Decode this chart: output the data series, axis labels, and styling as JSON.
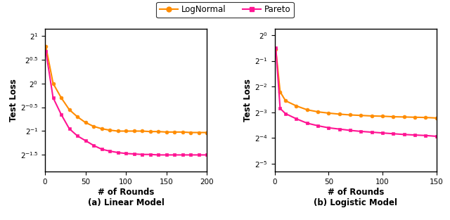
{
  "left": {
    "title": "(a) Linear Model",
    "xlabel": "# of Rounds",
    "ylabel": "Test Loss",
    "xlim": [
      0,
      200
    ],
    "ylim_exp": [
      -1.85,
      1.15
    ],
    "yticks_exp": [
      -1.5,
      -1.0,
      -0.5,
      0.0,
      0.5,
      1.0
    ],
    "xticks": [
      0,
      50,
      100,
      150,
      200
    ],
    "lognormal_x": [
      1,
      10,
      20,
      30,
      40,
      50,
      60,
      70,
      80,
      90,
      100,
      110,
      120,
      130,
      140,
      150,
      160,
      170,
      180,
      190,
      200
    ],
    "lognormal_y": [
      0.78,
      0.0,
      -0.3,
      -0.55,
      -0.7,
      -0.82,
      -0.9,
      -0.95,
      -0.98,
      -1.0,
      -1.0,
      -1.0,
      -1.0,
      -1.01,
      -1.01,
      -1.02,
      -1.02,
      -1.02,
      -1.03,
      -1.03,
      -1.03
    ],
    "pareto_x": [
      1,
      10,
      20,
      30,
      40,
      50,
      60,
      70,
      80,
      90,
      100,
      110,
      120,
      130,
      140,
      150,
      160,
      170,
      180,
      190,
      200
    ],
    "pareto_y": [
      0.68,
      -0.3,
      -0.65,
      -0.95,
      -1.1,
      -1.2,
      -1.3,
      -1.38,
      -1.42,
      -1.45,
      -1.47,
      -1.48,
      -1.49,
      -1.49,
      -1.5,
      -1.5,
      -1.5,
      -1.5,
      -1.5,
      -1.5,
      -1.5
    ]
  },
  "right": {
    "title": "(b) Logistic Model",
    "xlabel": "# of Rounds",
    "ylabel": "Test Loss",
    "xlim": [
      0,
      150
    ],
    "ylim_exp": [
      -5.3,
      0.25
    ],
    "yticks_exp": [
      -5,
      -4,
      -3,
      -2,
      -1,
      0
    ],
    "xticks": [
      0,
      50,
      100,
      150
    ],
    "lognormal_x": [
      1,
      5,
      10,
      20,
      30,
      40,
      50,
      60,
      70,
      80,
      90,
      100,
      110,
      120,
      130,
      140,
      150
    ],
    "lognormal_y": [
      -0.55,
      -2.2,
      -2.55,
      -2.75,
      -2.9,
      -2.98,
      -3.03,
      -3.07,
      -3.1,
      -3.12,
      -3.14,
      -3.15,
      -3.17,
      -3.18,
      -3.19,
      -3.2,
      -3.22
    ],
    "pareto_x": [
      1,
      5,
      10,
      20,
      30,
      40,
      50,
      60,
      70,
      80,
      90,
      100,
      110,
      120,
      130,
      140,
      150
    ],
    "pareto_y": [
      -0.5,
      -2.85,
      -3.05,
      -3.25,
      -3.42,
      -3.52,
      -3.6,
      -3.65,
      -3.7,
      -3.74,
      -3.77,
      -3.8,
      -3.83,
      -3.86,
      -3.88,
      -3.9,
      -3.93
    ]
  },
  "lognormal_color": "#FF8C00",
  "pareto_color": "#FF1493",
  "legend_labels": [
    "LogNormal",
    "Pareto"
  ],
  "background_color": "#FFFFFF"
}
